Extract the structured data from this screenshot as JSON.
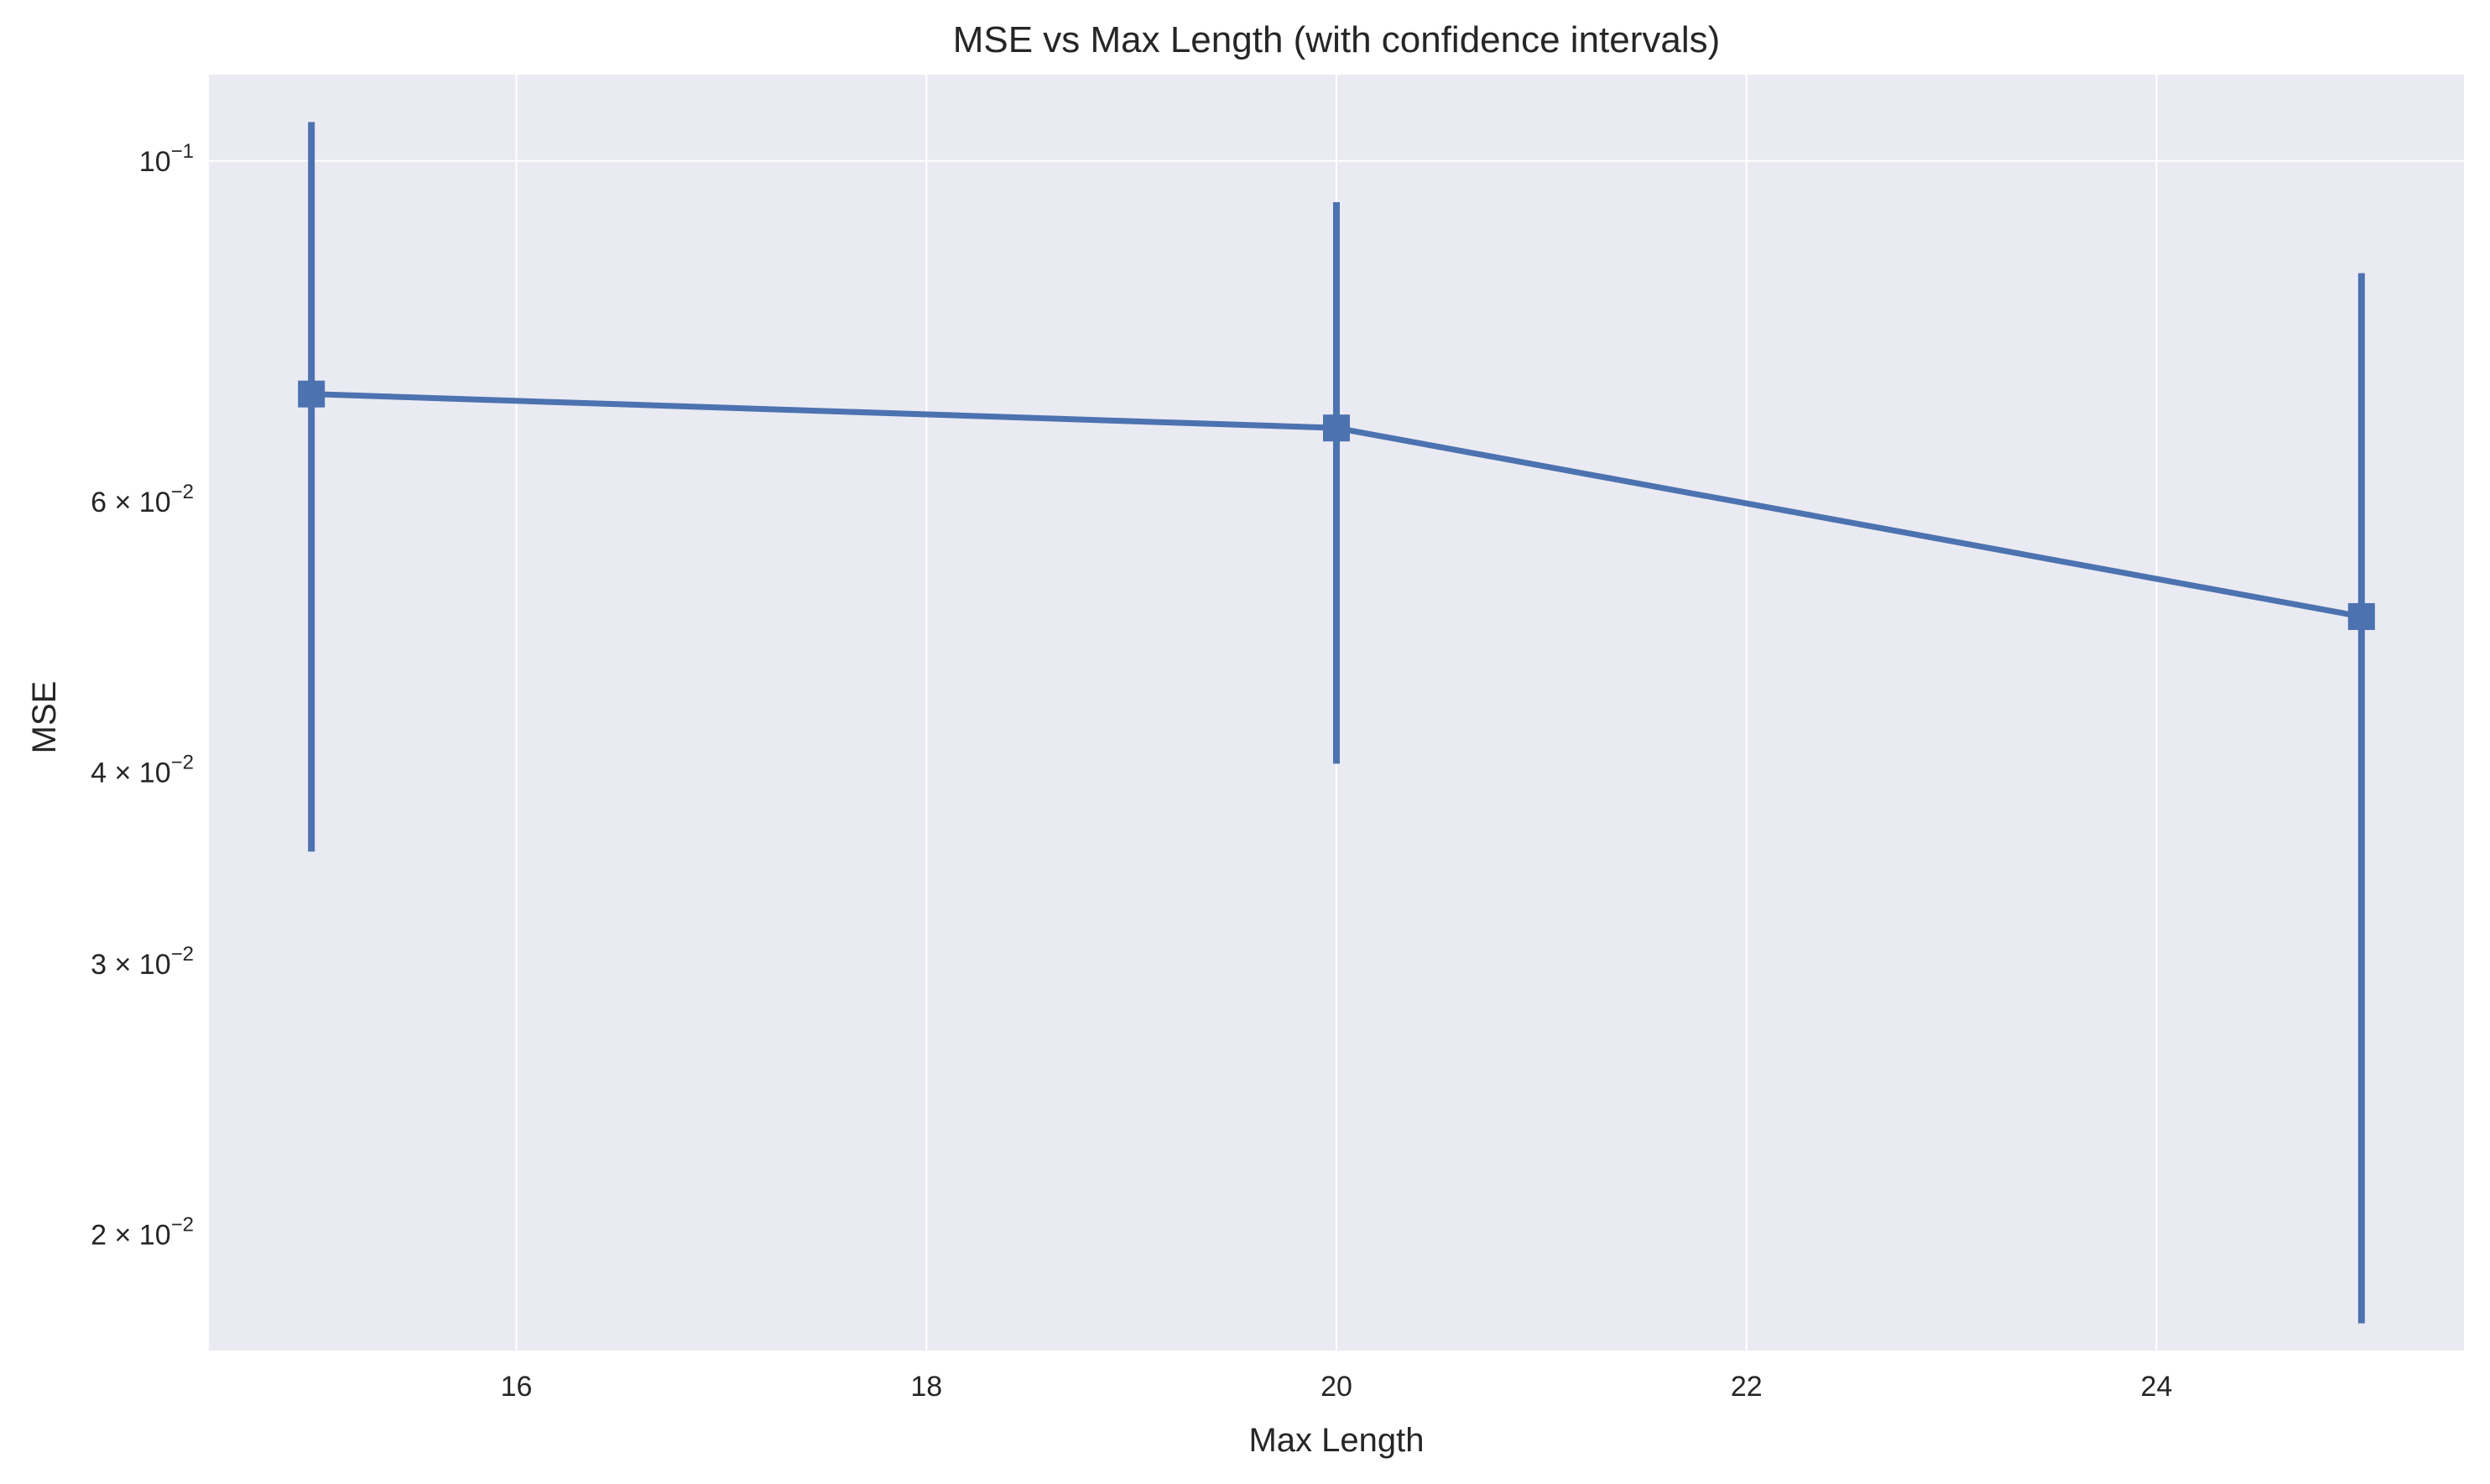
{
  "chart_data": {
    "type": "line",
    "title": "MSE vs Max Length (with confidence intervals)",
    "xlabel": "Max Length",
    "ylabel": "MSE",
    "y_scale": "log",
    "xlim": [
      14.5,
      25.5
    ],
    "ylim": [
      0.0168,
      0.1138
    ],
    "x_ticks": [
      16,
      18,
      20,
      22,
      24
    ],
    "y_ticks": [
      {
        "value": 0.1,
        "base": "10",
        "exponent": "−1",
        "mult": ""
      },
      {
        "value": 0.06,
        "base": "10",
        "exponent": "−2",
        "mult": "6 × "
      },
      {
        "value": 0.04,
        "base": "10",
        "exponent": "−2",
        "mult": "4 × "
      },
      {
        "value": 0.03,
        "base": "10",
        "exponent": "−2",
        "mult": "3 × "
      },
      {
        "value": 0.02,
        "base": "10",
        "exponent": "−2",
        "mult": "2 × "
      }
    ],
    "grid": true,
    "series": [
      {
        "x": [
          15,
          20,
          25
        ],
        "y": [
          0.0705,
          0.067,
          0.0505
        ],
        "ci_low": [
          0.0355,
          0.0405,
          0.0175
        ],
        "ci_high": [
          0.106,
          0.094,
          0.0845
        ],
        "color": "#4c72b0",
        "marker": "square"
      }
    ]
  },
  "colors": {
    "plot_background": "#eaeaf2",
    "grid": "#ffffff",
    "text": "#262626"
  }
}
